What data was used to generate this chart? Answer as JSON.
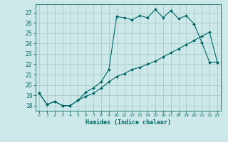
{
  "xlabel": "Humidex (Indice chaleur)",
  "ylabel": "",
  "bg_color": "#cce8e8",
  "grid_color": "#aacccc",
  "line_color": "#006666",
  "ylim": [
    17.5,
    27.8
  ],
  "xlim": [
    -0.5,
    23.5
  ],
  "yticks": [
    18,
    19,
    20,
    21,
    22,
    23,
    24,
    25,
    26,
    27
  ],
  "xticks": [
    0,
    1,
    2,
    3,
    4,
    5,
    6,
    7,
    8,
    9,
    10,
    11,
    12,
    13,
    14,
    15,
    16,
    17,
    18,
    19,
    20,
    21,
    22,
    23
  ],
  "upper_x": [
    0,
    1,
    2,
    3,
    4,
    5,
    6,
    7,
    8,
    9,
    10,
    11,
    12,
    13,
    14,
    15,
    16,
    17,
    18,
    19,
    20,
    21,
    22,
    23
  ],
  "upper_y": [
    19.2,
    18.1,
    18.4,
    18.0,
    18.0,
    18.5,
    19.3,
    19.7,
    20.3,
    21.5,
    26.6,
    26.5,
    26.3,
    26.7,
    26.5,
    27.3,
    26.5,
    27.2,
    26.4,
    26.7,
    25.9,
    24.1,
    22.2,
    22.2
  ],
  "lower_x": [
    0,
    1,
    2,
    3,
    4,
    5,
    6,
    7,
    8,
    9,
    10,
    11,
    12,
    13,
    14,
    15,
    16,
    17,
    18,
    19,
    20,
    21,
    22,
    23
  ],
  "lower_y": [
    19.2,
    18.1,
    18.4,
    18.0,
    18.0,
    18.5,
    18.9,
    19.2,
    19.7,
    20.3,
    20.8,
    21.1,
    21.5,
    21.7,
    22.0,
    22.3,
    22.7,
    23.1,
    23.5,
    23.9,
    24.3,
    24.7,
    25.1,
    22.2
  ]
}
